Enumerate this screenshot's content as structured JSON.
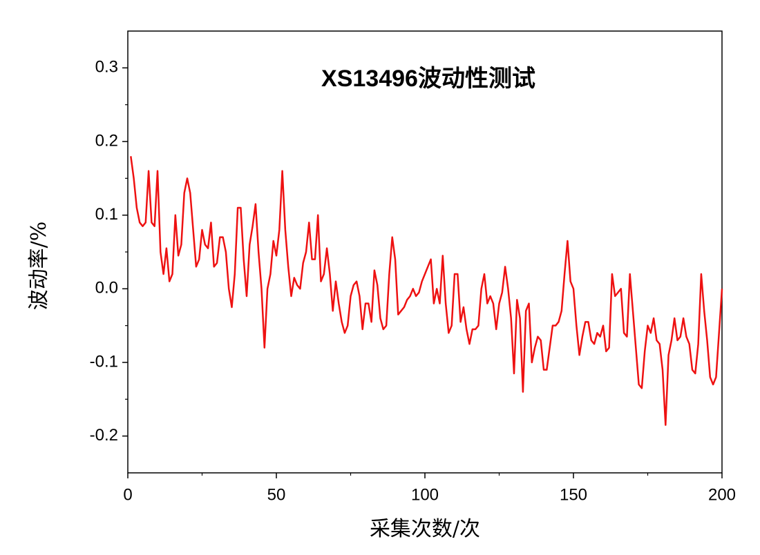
{
  "chart_data": {
    "type": "line",
    "title": "XS13496波动性测试",
    "xlabel": "采集次数/次",
    "ylabel": "波动率/%",
    "xlim": [
      0,
      200
    ],
    "xticks": [
      0,
      50,
      100,
      150,
      200
    ],
    "ylim": [
      -0.25,
      0.35
    ],
    "yticks": [
      0.3,
      0.2,
      0.1,
      {
        "value": 0,
        "label": "0.0"
      },
      -0.1,
      -0.2
    ],
    "series": [
      {
        "color": "#ee1111",
        "x": [
          1,
          2,
          3,
          4,
          5,
          6,
          7,
          8,
          9,
          10,
          11,
          12,
          13,
          14,
          15,
          16,
          17,
          18,
          19,
          20,
          21,
          22,
          23,
          24,
          25,
          26,
          27,
          28,
          29,
          30,
          31,
          32,
          33,
          34,
          35,
          36,
          37,
          38,
          39,
          40,
          41,
          42,
          43,
          44,
          45,
          46,
          47,
          48,
          49,
          50,
          51,
          52,
          53,
          54,
          55,
          56,
          57,
          58,
          59,
          60,
          61,
          62,
          63,
          64,
          65,
          66,
          67,
          68,
          69,
          70,
          71,
          72,
          73,
          74,
          75,
          76,
          77,
          78,
          79,
          80,
          81,
          82,
          83,
          84,
          85,
          86,
          87,
          88,
          89,
          90,
          91,
          92,
          93,
          94,
          95,
          96,
          97,
          98,
          99,
          100,
          101,
          102,
          103,
          104,
          105,
          106,
          107,
          108,
          109,
          110,
          111,
          112,
          113,
          114,
          115,
          116,
          117,
          118,
          119,
          120,
          121,
          122,
          123,
          124,
          125,
          126,
          127,
          128,
          129,
          130,
          131,
          132,
          133,
          134,
          135,
          136,
          137,
          138,
          139,
          140,
          141,
          142,
          143,
          144,
          145,
          146,
          147,
          148,
          149,
          150,
          151,
          152,
          153,
          154,
          155,
          156,
          157,
          158,
          159,
          160,
          161,
          162,
          163,
          164,
          165,
          166,
          167,
          168,
          169,
          170,
          171,
          172,
          173,
          174,
          175,
          176,
          177,
          178,
          179,
          180,
          181,
          182,
          183,
          184,
          185,
          186,
          187,
          188,
          189,
          190,
          191,
          192,
          193,
          194,
          195,
          196,
          197,
          198,
          199,
          200
        ],
        "values": [
          0.18,
          0.15,
          0.11,
          0.09,
          0.085,
          0.09,
          0.16,
          0.09,
          0.085,
          0.16,
          0.05,
          0.02,
          0.055,
          0.01,
          0.02,
          0.1,
          0.045,
          0.06,
          0.13,
          0.15,
          0.13,
          0.08,
          0.03,
          0.04,
          0.08,
          0.06,
          0.055,
          0.09,
          0.03,
          0.035,
          0.07,
          0.07,
          0.05,
          0.0,
          -0.025,
          0.02,
          0.11,
          0.11,
          0.04,
          -0.01,
          0.06,
          0.085,
          0.115,
          0.05,
          0.0,
          -0.08,
          0.0,
          0.02,
          0.065,
          0.045,
          0.08,
          0.16,
          0.08,
          0.03,
          -0.01,
          0.015,
          0.005,
          0.0,
          0.035,
          0.05,
          0.09,
          0.04,
          0.04,
          0.1,
          0.01,
          0.02,
          0.055,
          0.02,
          -0.03,
          0.01,
          -0.02,
          -0.045,
          -0.06,
          -0.05,
          -0.01,
          0.005,
          0.01,
          -0.01,
          -0.055,
          -0.02,
          -0.02,
          -0.045,
          0.025,
          0.005,
          -0.04,
          -0.055,
          -0.05,
          0.02,
          0.07,
          0.04,
          -0.035,
          -0.03,
          -0.025,
          -0.015,
          -0.01,
          0.0,
          -0.01,
          -0.005,
          0.01,
          0.02,
          0.03,
          0.04,
          -0.02,
          0.0,
          -0.02,
          0.045,
          -0.02,
          -0.06,
          -0.05,
          0.02,
          0.02,
          -0.045,
          -0.025,
          -0.055,
          -0.075,
          -0.055,
          -0.055,
          -0.05,
          0.0,
          0.02,
          -0.02,
          -0.01,
          -0.02,
          -0.055,
          -0.02,
          -0.005,
          0.03,
          0.0,
          -0.04,
          -0.115,
          -0.015,
          -0.04,
          -0.14,
          -0.03,
          -0.02,
          -0.1,
          -0.08,
          -0.065,
          -0.07,
          -0.11,
          -0.11,
          -0.08,
          -0.05,
          -0.05,
          -0.045,
          -0.03,
          0.02,
          0.065,
          0.01,
          0.0,
          -0.05,
          -0.09,
          -0.065,
          -0.045,
          -0.045,
          -0.07,
          -0.075,
          -0.06,
          -0.065,
          -0.05,
          -0.085,
          -0.08,
          0.02,
          -0.01,
          -0.005,
          0.0,
          -0.06,
          -0.065,
          0.02,
          -0.03,
          -0.08,
          -0.13,
          -0.135,
          -0.085,
          -0.05,
          -0.06,
          -0.04,
          -0.07,
          -0.075,
          -0.11,
          -0.185,
          -0.09,
          -0.07,
          -0.04,
          -0.07,
          -0.065,
          -0.04,
          -0.065,
          -0.075,
          -0.11,
          -0.115,
          -0.075,
          0.02,
          -0.03,
          -0.07,
          -0.12,
          -0.13,
          -0.12,
          -0.06,
          0.0
        ]
      }
    ]
  }
}
